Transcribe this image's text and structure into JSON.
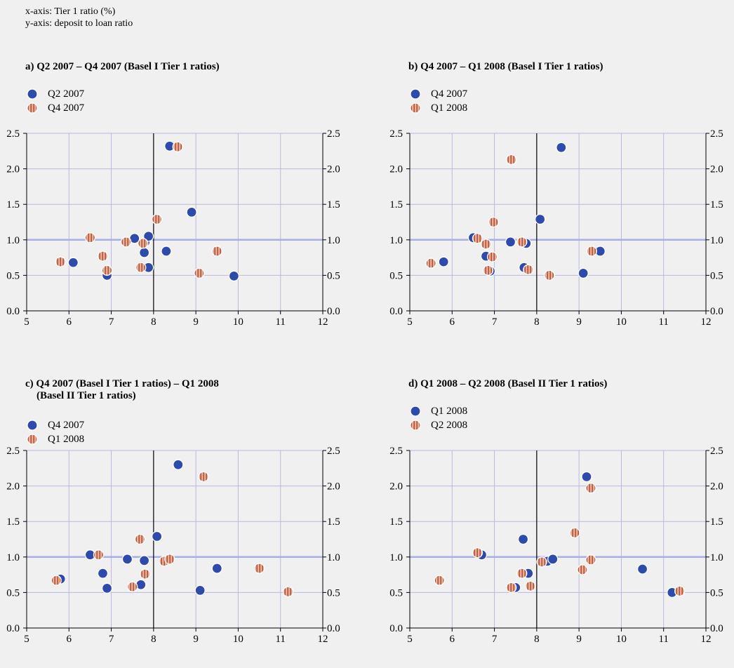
{
  "notes": {
    "x": "x-axis: Tier 1 ratio (%)",
    "y": "y-axis: deposit to loan ratio"
  },
  "colors": {
    "series1": "#2e4bac",
    "series2_fill": "#e3b29a",
    "series2_stripe": "#b2432a",
    "grid": "#b8b8e0",
    "ref_line": "#a8aee6"
  },
  "chart_data": [
    {
      "type": "scatter",
      "title": "a) Q2 2007 – Q4 2007 (Basel I Tier 1 ratios)",
      "xlim": [
        5,
        12
      ],
      "ylim": [
        0,
        2.5
      ],
      "x_ticks": [
        "5",
        "6",
        "7",
        "8",
        "9",
        "10",
        "11",
        "12"
      ],
      "y_ticks": [
        "0.0",
        "0.5",
        "1.0",
        "1.5",
        "2.0",
        "2.5"
      ],
      "vline_x": 8,
      "hline_y": 1.0,
      "grid": true,
      "legend": "top-left",
      "series": [
        {
          "name": "Q2 2007",
          "points": [
            [
              6.1,
              0.68
            ],
            [
              6.9,
              0.5
            ],
            [
              7.55,
              1.02
            ],
            [
              7.78,
              0.82
            ],
            [
              7.8,
              0.97
            ],
            [
              7.88,
              1.05
            ],
            [
              7.88,
              0.61
            ],
            [
              8.3,
              0.84
            ],
            [
              8.38,
              2.32
            ],
            [
              8.9,
              1.39
            ],
            [
              9.9,
              0.49
            ]
          ]
        },
        {
          "name": "Q4 2007",
          "points": [
            [
              5.8,
              0.69
            ],
            [
              6.5,
              1.03
            ],
            [
              6.8,
              0.77
            ],
            [
              6.9,
              0.57
            ],
            [
              7.35,
              0.97
            ],
            [
              7.7,
              0.61
            ],
            [
              7.75,
              0.95
            ],
            [
              8.08,
              1.29
            ],
            [
              8.57,
              2.31
            ],
            [
              9.08,
              0.53
            ],
            [
              9.5,
              0.84
            ]
          ]
        }
      ]
    },
    {
      "type": "scatter",
      "title": "b) Q4 2007 – Q1 2008 (Basel I Tier 1 ratios)",
      "xlim": [
        5,
        12
      ],
      "ylim": [
        0,
        2.5
      ],
      "x_ticks": [
        "5",
        "6",
        "7",
        "8",
        "9",
        "10",
        "11",
        "12"
      ],
      "y_ticks": [
        "0.0",
        "0.5",
        "1.0",
        "1.5",
        "2.0",
        "2.5"
      ],
      "vline_x": 8,
      "hline_y": 1.0,
      "grid": true,
      "legend": "top-left",
      "series": [
        {
          "name": "Q4 2007",
          "points": [
            [
              5.8,
              0.69
            ],
            [
              6.5,
              1.03
            ],
            [
              6.8,
              0.77
            ],
            [
              6.9,
              0.56
            ],
            [
              7.38,
              0.97
            ],
            [
              7.7,
              0.61
            ],
            [
              7.75,
              0.95
            ],
            [
              8.08,
              1.29
            ],
            [
              8.58,
              2.3
            ],
            [
              9.1,
              0.53
            ],
            [
              9.5,
              0.84
            ]
          ]
        },
        {
          "name": "Q1 2008",
          "points": [
            [
              5.5,
              0.67
            ],
            [
              6.6,
              1.02
            ],
            [
              6.8,
              0.94
            ],
            [
              6.85,
              0.57
            ],
            [
              6.95,
              0.76
            ],
            [
              6.98,
              1.25
            ],
            [
              7.4,
              2.13
            ],
            [
              7.65,
              0.97
            ],
            [
              7.8,
              0.58
            ],
            [
              8.3,
              0.5
            ],
            [
              9.3,
              0.84
            ]
          ]
        }
      ]
    },
    {
      "type": "scatter",
      "title": "c) Q4 2007 (Basel I Tier 1 ratios) – Q1 2008",
      "title_line2": "(Basel II Tier 1 ratios)",
      "xlim": [
        5,
        12
      ],
      "ylim": [
        0,
        2.5
      ],
      "x_ticks": [
        "5",
        "6",
        "7",
        "8",
        "9",
        "10",
        "11",
        "12"
      ],
      "y_ticks": [
        "0.0",
        "0.5",
        "1.0",
        "1.5",
        "2.0",
        "2.5"
      ],
      "vline_x": 8,
      "hline_y": 1.0,
      "grid": true,
      "legend": "top-left",
      "series": [
        {
          "name": "Q4 2007",
          "points": [
            [
              5.8,
              0.69
            ],
            [
              6.5,
              1.03
            ],
            [
              6.8,
              0.77
            ],
            [
              6.9,
              0.56
            ],
            [
              7.38,
              0.97
            ],
            [
              7.7,
              0.61
            ],
            [
              7.78,
              0.95
            ],
            [
              8.08,
              1.29
            ],
            [
              8.58,
              2.3
            ],
            [
              9.1,
              0.53
            ],
            [
              9.5,
              0.84
            ]
          ]
        },
        {
          "name": "Q1 2008",
          "points": [
            [
              5.7,
              0.67
            ],
            [
              6.7,
              1.03
            ],
            [
              7.5,
              0.58
            ],
            [
              7.68,
              1.25
            ],
            [
              7.8,
              0.76
            ],
            [
              8.25,
              0.94
            ],
            [
              8.38,
              0.97
            ],
            [
              9.18,
              2.13
            ],
            [
              10.5,
              0.84
            ],
            [
              11.18,
              0.51
            ]
          ]
        }
      ]
    },
    {
      "type": "scatter",
      "title": "d) Q1 2008 – Q2 2008 (Basel II Tier 1 ratios)",
      "xlim": [
        5,
        12
      ],
      "ylim": [
        0,
        2.5
      ],
      "x_ticks": [
        "5",
        "6",
        "7",
        "8",
        "9",
        "10",
        "11",
        "12"
      ],
      "y_ticks": [
        "0.0",
        "0.5",
        "1.0",
        "1.5",
        "2.0",
        "2.5"
      ],
      "vline_x": 8,
      "hline_y": 1.0,
      "grid": true,
      "legend": "top-left",
      "series": [
        {
          "name": "Q1 2008",
          "points": [
            [
              6.7,
              1.03
            ],
            [
              7.5,
              0.57
            ],
            [
              7.68,
              1.25
            ],
            [
              7.8,
              0.77
            ],
            [
              8.25,
              0.94
            ],
            [
              8.38,
              0.97
            ],
            [
              9.18,
              2.13
            ],
            [
              10.5,
              0.83
            ],
            [
              11.2,
              0.5
            ]
          ]
        },
        {
          "name": "Q2 2008",
          "points": [
            [
              5.7,
              0.67
            ],
            [
              6.6,
              1.06
            ],
            [
              7.4,
              0.57
            ],
            [
              7.65,
              0.77
            ],
            [
              7.85,
              0.59
            ],
            [
              8.12,
              0.93
            ],
            [
              8.9,
              1.34
            ],
            [
              9.08,
              0.82
            ],
            [
              9.28,
              1.97
            ],
            [
              9.28,
              0.96
            ],
            [
              11.38,
              0.52
            ]
          ]
        }
      ]
    }
  ]
}
